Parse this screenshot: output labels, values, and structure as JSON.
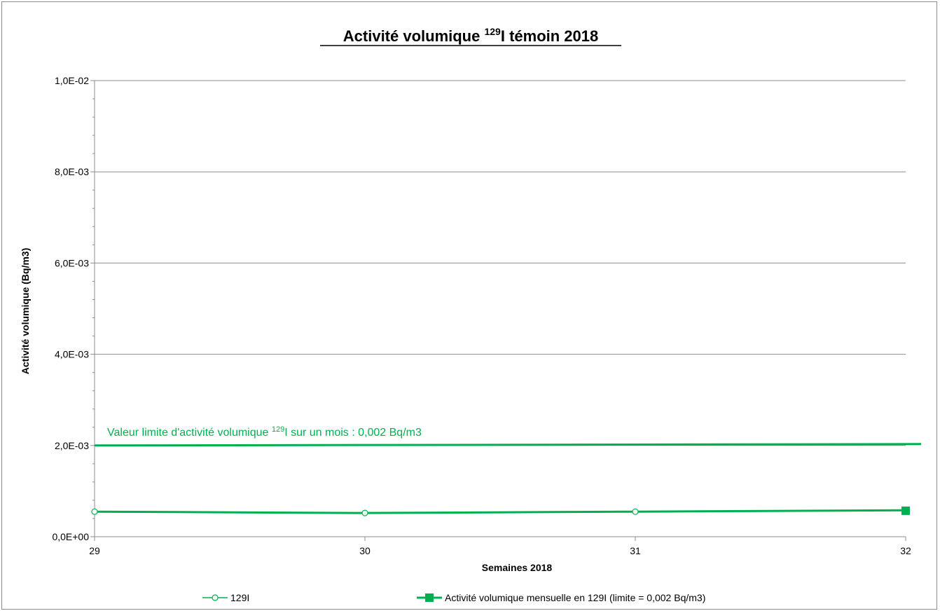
{
  "chart_data": {
    "type": "line",
    "title": "Activité volumique 129I témoin 2018",
    "title_parts": {
      "before": "Activité volumique ",
      "superscript": "129",
      "after": "I témoin 2018"
    },
    "xlabel": "Semaines 2018",
    "ylabel": "Activité volumique (Bq/m3)",
    "x_ticks": [
      29,
      30,
      31,
      32
    ],
    "xlim": [
      29,
      32
    ],
    "y_ticks": [
      "0,0E+00",
      "2,0E-03",
      "4,0E-03",
      "6,0E-03",
      "8,0E-03",
      "1,0E-02"
    ],
    "y_tick_values": [
      0,
      0.002,
      0.004,
      0.006,
      0.008,
      0.01
    ],
    "ylim": [
      0,
      0.01
    ],
    "grid": "horizontal",
    "legend_position": "bottom",
    "series": [
      {
        "name": "129I",
        "color": "#00b050",
        "marker": "open-circle",
        "x": [
          29,
          30,
          31,
          32
        ],
        "values": [
          0.00055,
          0.00052,
          0.00055,
          0.00058
        ]
      },
      {
        "name": "Activité volumique mensuelle en 129I  (limite = 0,002 Bq/m3)",
        "color": "#00b050",
        "marker": "filled-square",
        "x": [
          32
        ],
        "values": [
          0.00057
        ]
      }
    ],
    "limit_line": {
      "value": 0.002,
      "color": "#00b050"
    },
    "annotation": {
      "before": "Valeur limite d'activité volumique ",
      "superscript": "129",
      "after": "I sur un mois : 0,002 Bq/m3",
      "color": "#00b050"
    }
  }
}
